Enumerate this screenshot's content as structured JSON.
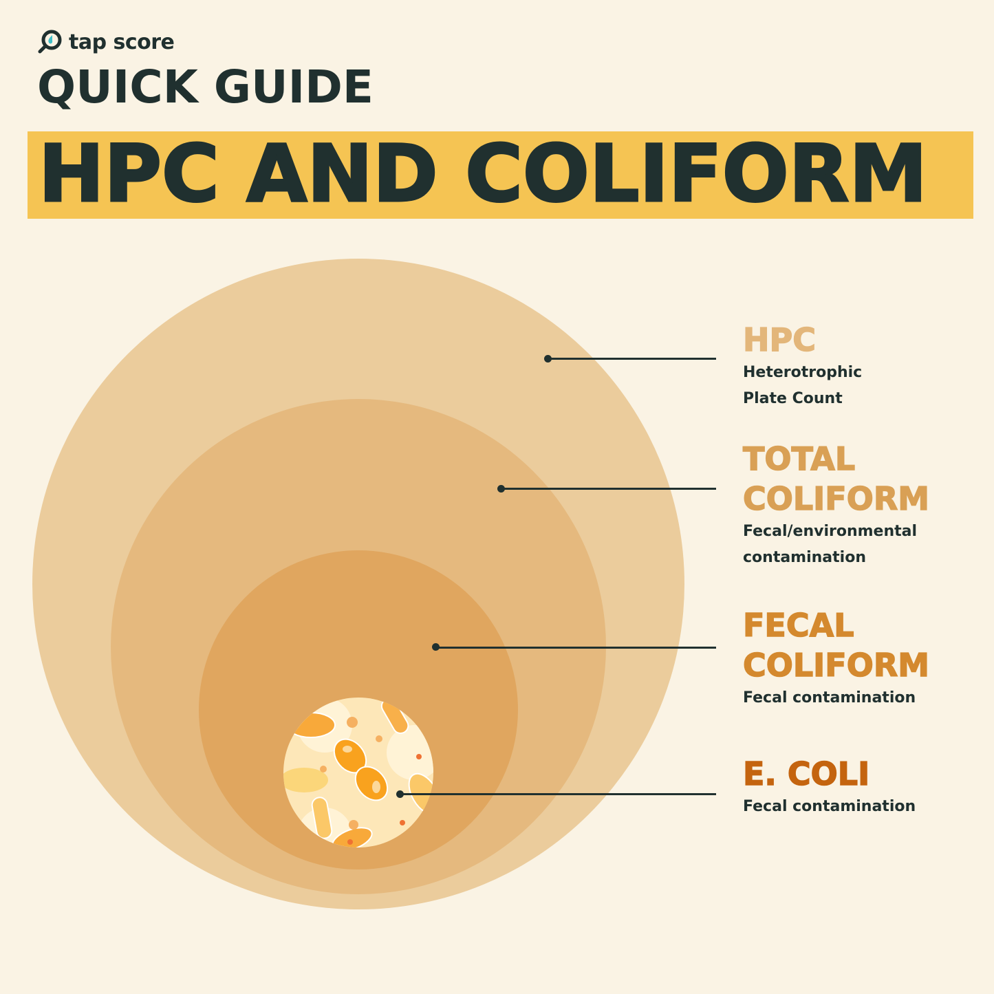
{
  "brand": {
    "name": "tap score",
    "icon": "magnifier-drop-icon"
  },
  "header": {
    "subtitle": "QUICK GUIDE",
    "title": "HPC AND COLIFORM"
  },
  "colors": {
    "background": "#faf3e4",
    "banner": "#f5c453",
    "text": "#20302f",
    "hpc": "#e3b67a",
    "total_coliform": "#d9a055",
    "fecal_coliform": "#d4892e",
    "e_coli": "#c4640f"
  },
  "levels": [
    {
      "title_lines": [
        "HPC"
      ],
      "desc_lines": [
        "Heterotrophic",
        "Plate Count"
      ]
    },
    {
      "title_lines": [
        "TOTAL",
        "COLIFORM"
      ],
      "desc_lines": [
        "Fecal/environmental",
        "contamination"
      ]
    },
    {
      "title_lines": [
        "FECAL",
        "COLIFORM"
      ],
      "desc_lines": [
        "Fecal contamination"
      ]
    },
    {
      "title_lines": [
        "E. COLI"
      ],
      "desc_lines": [
        "Fecal contamination"
      ]
    }
  ]
}
